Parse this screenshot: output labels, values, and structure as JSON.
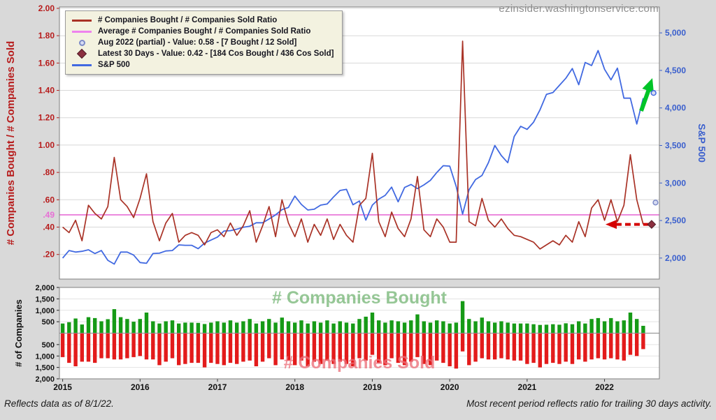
{
  "watermark": "ezinsider.washingtonservice.com",
  "footer": {
    "left": "Reflects data as of 8/1/22.",
    "right": "Most recent period reflects ratio for trailing 30 days activity."
  },
  "legend": {
    "items": [
      {
        "label": "# Companies Bought / # Companies Sold Ratio",
        "swatch": "line",
        "color": "#a93226"
      },
      {
        "label": "Average # Companies Bought / # Companies Sold Ratio",
        "swatch": "line",
        "color": "#ee82ee"
      },
      {
        "label": "Aug 2022 (partial) - Value: 0.58 - [7 Bought / 12 Sold]",
        "swatch": "dot",
        "color": "#7d8bc8"
      },
      {
        "label": "Latest 30 Days - Value: 0.42 - [184 Cos Bought / 436 Cos Sold]",
        "swatch": "diamond",
        "color": "#8b2f3f"
      },
      {
        "label": "S&P 500",
        "swatch": "line",
        "color": "#4169e1"
      }
    ]
  },
  "chart_data": [
    {
      "type": "line",
      "x_start": "2015-01",
      "x_interval": "month",
      "left_axis": {
        "label": "# Companies Bought / # Companies Sold",
        "color": "#b71c1c",
        "range": [
          0.02,
          2.01
        ],
        "ticks": [
          {
            "value": 2.0,
            "label": "2.00"
          },
          {
            "value": 1.8,
            "label": "1.80"
          },
          {
            "value": 1.6,
            "label": "1.60"
          },
          {
            "value": 1.4,
            "label": "1.40"
          },
          {
            "value": 1.2,
            "label": "1.20"
          },
          {
            "value": 1.0,
            "label": "1.00"
          },
          {
            "value": 0.8,
            "label": ".80"
          },
          {
            "value": 0.6,
            "label": ".60"
          },
          {
            "value": 0.4,
            "label": ".40"
          },
          {
            "value": 0.2,
            "label": ".20"
          }
        ]
      },
      "right_axis": {
        "label": "S&P 500",
        "color": "#3a5fcd",
        "range": [
          1720,
          5345
        ],
        "ticks": [
          {
            "value": 5000,
            "label": "5,000"
          },
          {
            "value": 4500,
            "label": "4,500"
          },
          {
            "value": 4000,
            "label": "4,000"
          },
          {
            "value": 3500,
            "label": "3,500"
          },
          {
            "value": 3000,
            "label": "3,000"
          },
          {
            "value": 2500,
            "label": "2,500"
          },
          {
            "value": 2000,
            "label": "2,000"
          }
        ]
      },
      "average": {
        "value": 0.49,
        "label": ".49",
        "color": "#e76fd6"
      },
      "series": [
        {
          "name": "# Companies Bought / # Companies Sold Ratio",
          "axis": "left",
          "color": "#a93226",
          "values": [
            0.4,
            0.36,
            0.45,
            0.3,
            0.56,
            0.5,
            0.46,
            0.55,
            0.91,
            0.6,
            0.55,
            0.47,
            0.61,
            0.79,
            0.44,
            0.3,
            0.43,
            0.5,
            0.29,
            0.34,
            0.36,
            0.34,
            0.27,
            0.36,
            0.38,
            0.33,
            0.43,
            0.34,
            0.41,
            0.52,
            0.29,
            0.41,
            0.55,
            0.33,
            0.6,
            0.43,
            0.33,
            0.46,
            0.29,
            0.42,
            0.34,
            0.46,
            0.31,
            0.42,
            0.34,
            0.29,
            0.56,
            0.61,
            0.94,
            0.44,
            0.33,
            0.51,
            0.39,
            0.33,
            0.46,
            0.77,
            0.38,
            0.33,
            0.46,
            0.4,
            0.29,
            0.29,
            1.76,
            0.44,
            0.41,
            0.61,
            0.45,
            0.4,
            0.46,
            0.39,
            0.34,
            0.33,
            0.31,
            0.29,
            0.24,
            0.27,
            0.3,
            0.27,
            0.34,
            0.29,
            0.44,
            0.33,
            0.54,
            0.6,
            0.45,
            0.6,
            0.44,
            0.56,
            0.93,
            0.6,
            0.42
          ]
        },
        {
          "name": "S&P 500",
          "axis": "right",
          "color": "#4169e1",
          "values": [
            2000,
            2100,
            2080,
            2090,
            2110,
            2060,
            2100,
            1970,
            1920,
            2080,
            2080,
            2040,
            1940,
            1930,
            2060,
            2065,
            2095,
            2100,
            2175,
            2170,
            2170,
            2125,
            2200,
            2240,
            2280,
            2360,
            2365,
            2385,
            2410,
            2425,
            2470,
            2470,
            2520,
            2575,
            2645,
            2675,
            2825,
            2715,
            2640,
            2650,
            2705,
            2720,
            2815,
            2900,
            2915,
            2710,
            2760,
            2505,
            2705,
            2785,
            2835,
            2945,
            2750,
            2940,
            2980,
            2925,
            2975,
            3035,
            3140,
            3230,
            3225,
            2955,
            2585,
            2910,
            3045,
            3100,
            3270,
            3500,
            3365,
            3270,
            3620,
            3755,
            3715,
            3810,
            3975,
            4180,
            4205,
            4300,
            4395,
            4525,
            4310,
            4605,
            4565,
            4765,
            4515,
            4375,
            4530,
            4130,
            4130,
            3785,
            4130
          ]
        }
      ],
      "markers": [
        {
          "name": "aug-2022-partial-dot",
          "shape": "dot",
          "axis": "left",
          "value": 0.58,
          "x_slot": 91.9,
          "fill": "#d7dcf2",
          "stroke": "#7d8bc8"
        },
        {
          "name": "latest-30-days-diamond",
          "shape": "diamond",
          "axis": "left",
          "value": 0.42,
          "x_slot": 91.3,
          "fill": "#8b2f3f",
          "stroke": "#4f1d28"
        },
        {
          "name": "sp500-latest-dot",
          "shape": "dot",
          "axis": "right",
          "value": 4200,
          "x_slot": 91.6,
          "fill": "#d7dcf2",
          "stroke": "#4169e1"
        }
      ],
      "annotations": [
        {
          "name": "trailing-ratio-arrow",
          "type": "dashed-arrow-left",
          "color": "#d40000",
          "at_value": 0.42
        },
        {
          "name": "sp500-up-arrow",
          "type": "arrow-up",
          "color": "#00c428"
        }
      ]
    },
    {
      "type": "bar",
      "ylabel": "# of Companies",
      "range": [
        -2000,
        2000
      ],
      "ticks": [
        {
          "value": 2000,
          "label": "2,000"
        },
        {
          "value": 1500,
          "label": "1,500"
        },
        {
          "value": 1000,
          "label": "1,000"
        },
        {
          "value": 500,
          "label": "500"
        },
        {
          "value": -500,
          "label": "500"
        },
        {
          "value": -1000,
          "label": "1,000"
        },
        {
          "value": -1500,
          "label": "1,500"
        },
        {
          "value": -2000,
          "label": "2,000"
        }
      ],
      "x_labels": [
        "2015",
        "2016",
        "2017",
        "2018",
        "2019",
        "2020",
        "2021",
        "2022"
      ],
      "series": [
        {
          "name": "# Companies Bought",
          "direction": "up",
          "color": "#169a16",
          "values": [
            420,
            480,
            640,
            380,
            700,
            660,
            520,
            610,
            1050,
            700,
            620,
            500,
            620,
            900,
            520,
            420,
            520,
            560,
            420,
            460,
            460,
            450,
            400,
            460,
            520,
            460,
            560,
            460,
            520,
            620,
            420,
            520,
            620,
            460,
            680,
            520,
            460,
            560,
            420,
            520,
            460,
            560,
            420,
            520,
            460,
            420,
            620,
            720,
            900,
            560,
            460,
            560,
            520,
            460,
            560,
            820,
            520,
            460,
            560,
            520,
            420,
            460,
            1400,
            620,
            520,
            680,
            520,
            460,
            520,
            460,
            420,
            420,
            420,
            390,
            360,
            370,
            390,
            370,
            430,
            390,
            520,
            420,
            620,
            660,
            520,
            660,
            520,
            560,
            900,
            620,
            320
          ]
        },
        {
          "name": "# Companies Sold",
          "direction": "down",
          "color": "#e31b1b",
          "values": [
            1050,
            1300,
            1450,
            1250,
            1250,
            1300,
            1100,
            1100,
            1150,
            1150,
            1100,
            1050,
            1000,
            1150,
            1150,
            1400,
            1250,
            1100,
            1400,
            1350,
            1300,
            1300,
            1500,
            1300,
            1350,
            1400,
            1300,
            1350,
            1250,
            1200,
            1450,
            1250,
            1100,
            1400,
            1150,
            1200,
            1400,
            1200,
            1450,
            1250,
            1350,
            1200,
            1350,
            1250,
            1350,
            1450,
            1100,
            1200,
            950,
            1300,
            1400,
            1100,
            1300,
            1400,
            1250,
            1050,
            1350,
            1400,
            1200,
            1300,
            1450,
            1550,
            800,
            1400,
            1250,
            1100,
            1150,
            1150,
            1100,
            1150,
            1200,
            1200,
            1350,
            1300,
            1500,
            1350,
            1300,
            1350,
            1250,
            1350,
            1150,
            1250,
            1150,
            1100,
            1150,
            1100,
            1150,
            1200,
            950,
            1000,
            700
          ]
        }
      ],
      "overlay_labels": [
        {
          "text": "# Companies Bought",
          "color": "rgba(85,165,85,0.62)"
        },
        {
          "text": "# Companies Sold",
          "color": "rgba(236,112,122,0.78)"
        }
      ]
    }
  ]
}
